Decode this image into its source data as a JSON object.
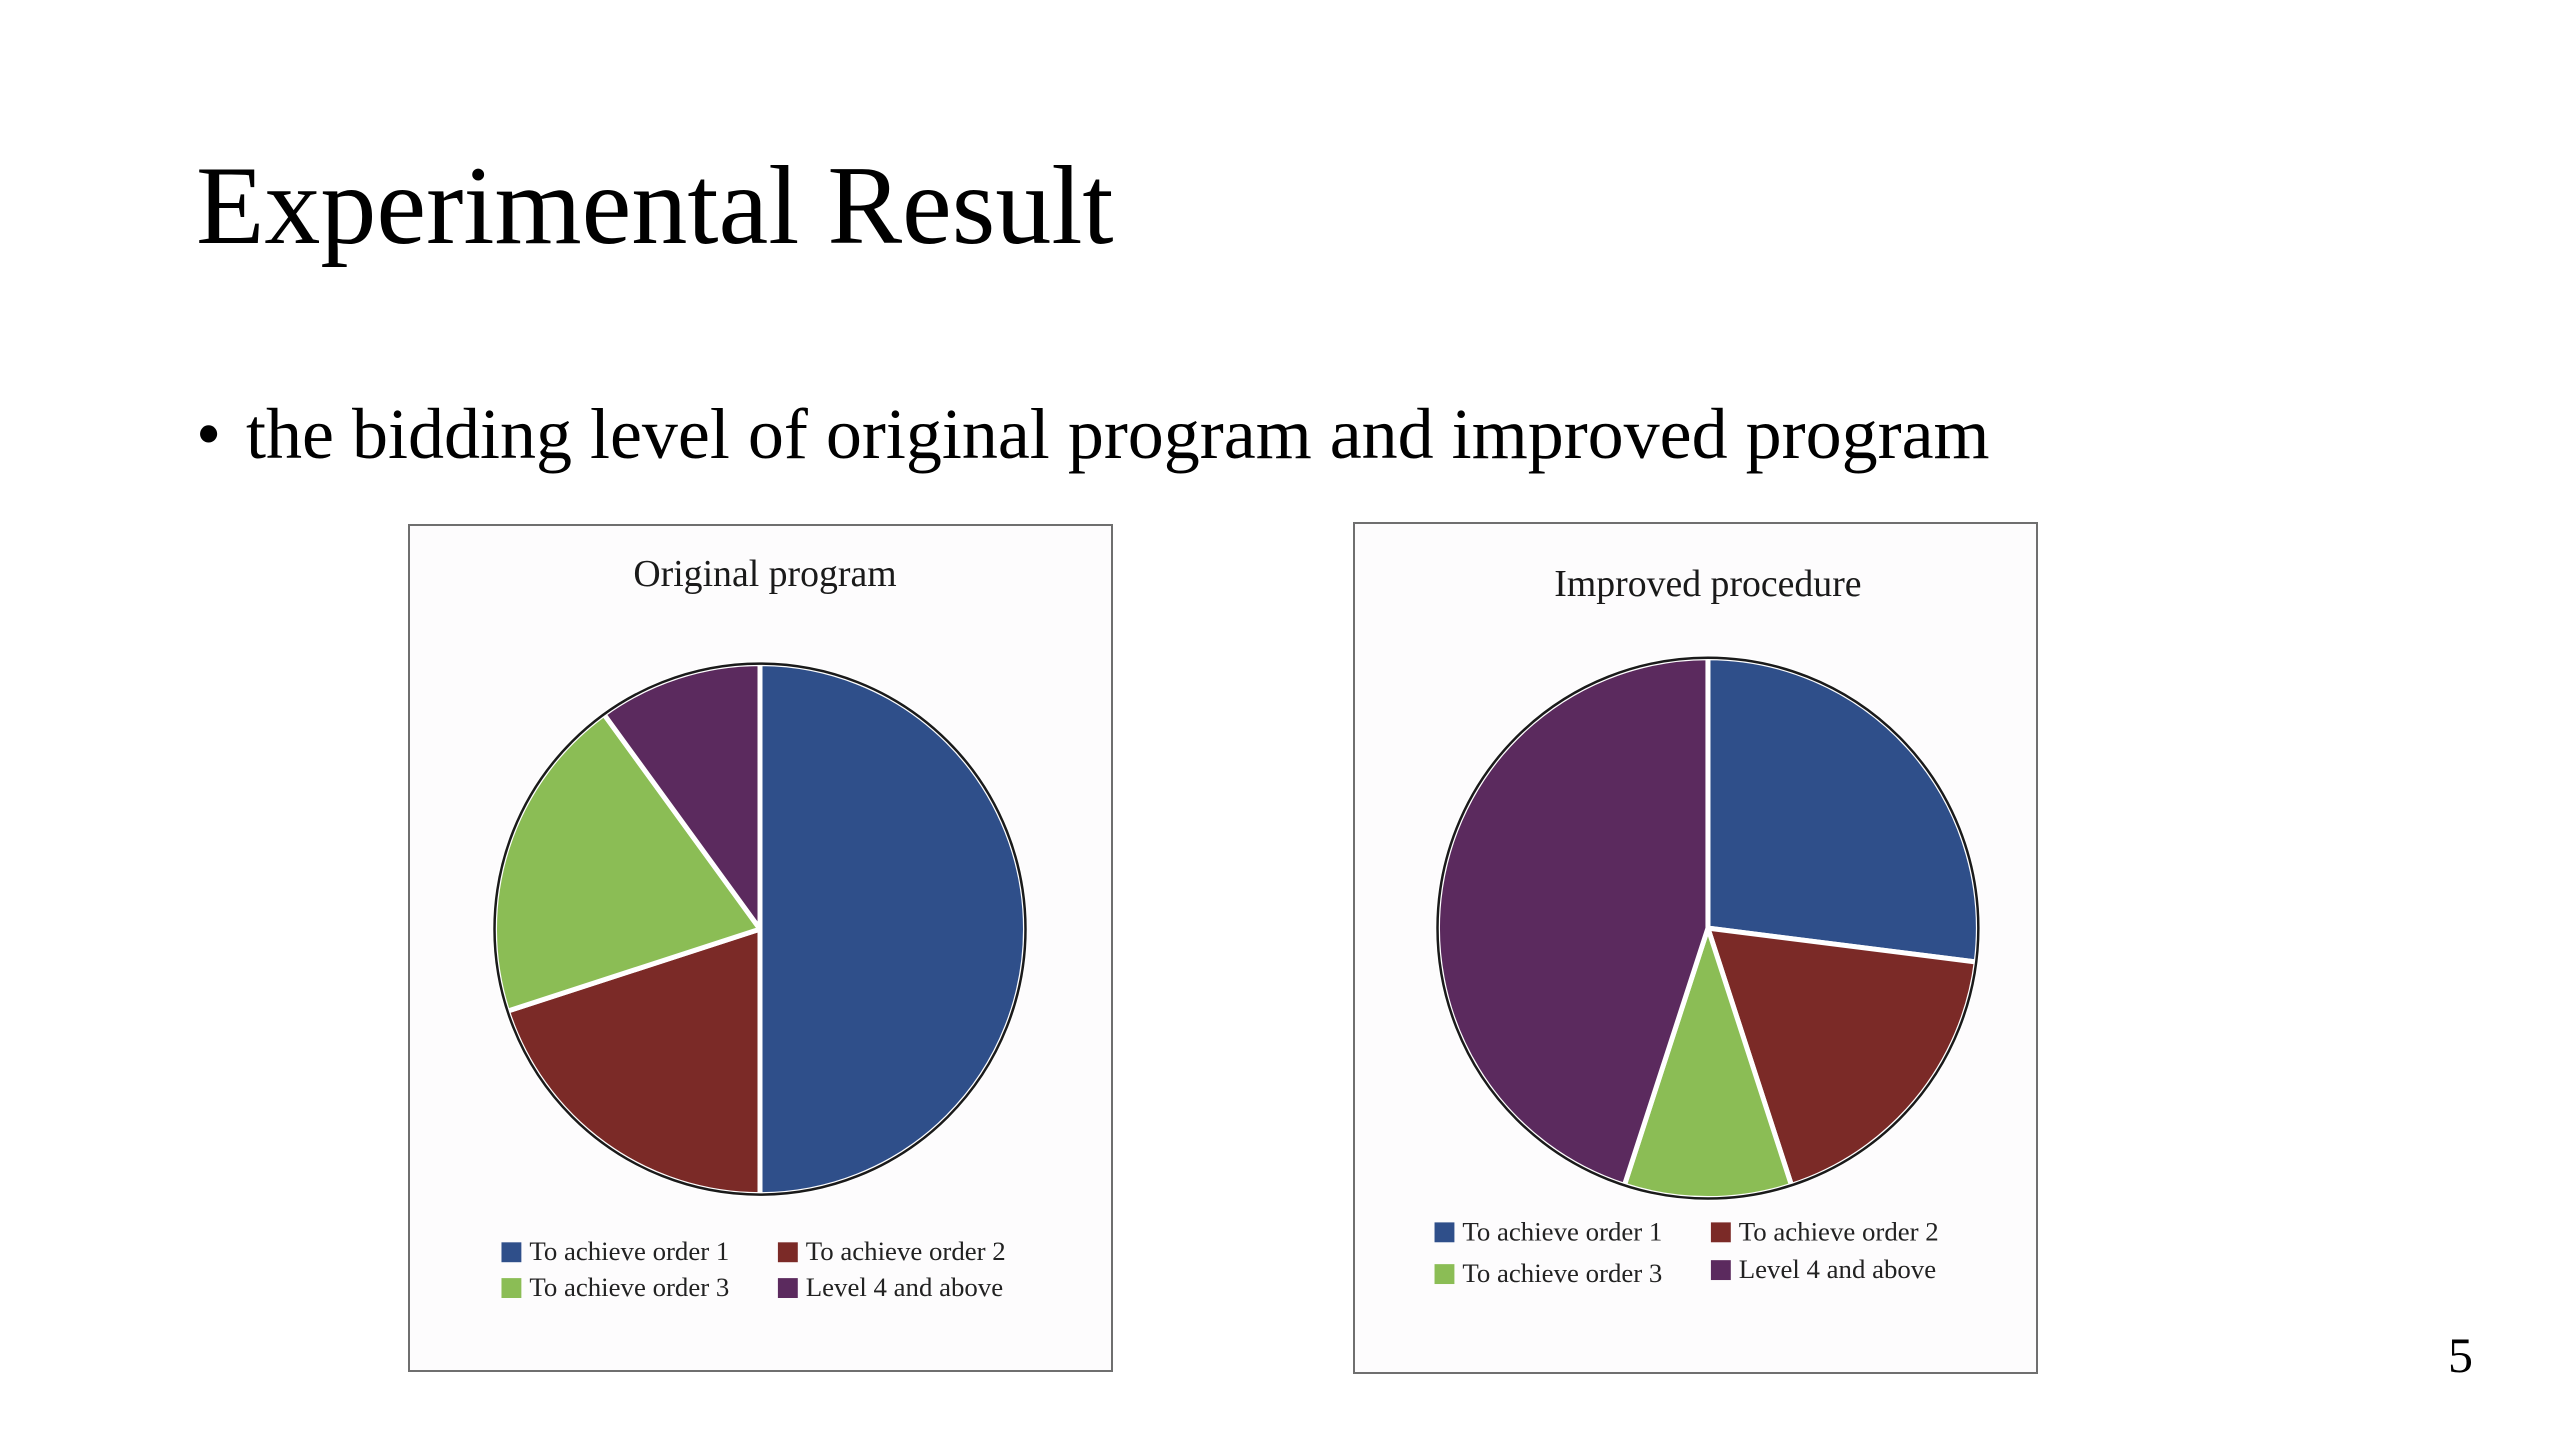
{
  "slide": {
    "title": "Experimental Result",
    "bullet": "the bidding level of original program and improved program",
    "page_number": "5"
  },
  "chart_data": [
    {
      "type": "pie",
      "title": "Original program",
      "categories": [
        "To achieve order 1",
        "To achieve order 2",
        "To achieve order 3",
        "Level 4 and above"
      ],
      "values": [
        50,
        20,
        20,
        10
      ],
      "colors": [
        "#2f4f8a",
        "#7b2a27",
        "#8bbd55",
        "#5b2a5e"
      ],
      "legend": "bottom"
    },
    {
      "type": "pie",
      "title": "Improved procedure",
      "categories": [
        "To achieve order 1",
        "To achieve order 2",
        "To achieve order 3",
        "Level 4 and above"
      ],
      "values": [
        27,
        18,
        10,
        45
      ],
      "colors": [
        "#2f4f8a",
        "#7b2a27",
        "#8bbd55",
        "#5b2a5e"
      ],
      "legend": "bottom"
    }
  ]
}
